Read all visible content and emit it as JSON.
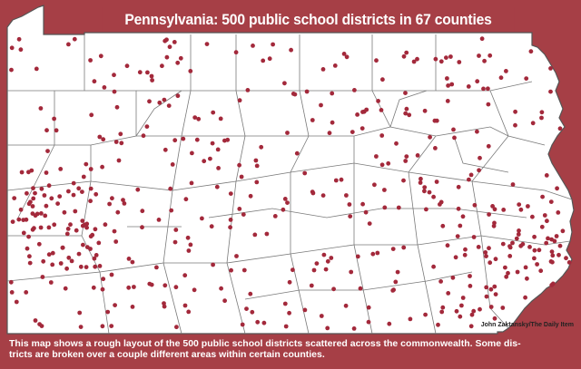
{
  "title": "Pennsylvania: 500 public school districts in 67 counties",
  "credit": "John Zaktansky/The Daily Item",
  "caption_lines": [
    "This map shows a rough layout of the 500 public school districts scattered across the commonwealth. Some dis-",
    "tricts are broken over a couple different areas within certain counties."
  ],
  "colors": {
    "banner": "#a63f46",
    "dot": "#a3293b",
    "county_line": "#7a7a7a",
    "land": "#ffffff"
  }
}
